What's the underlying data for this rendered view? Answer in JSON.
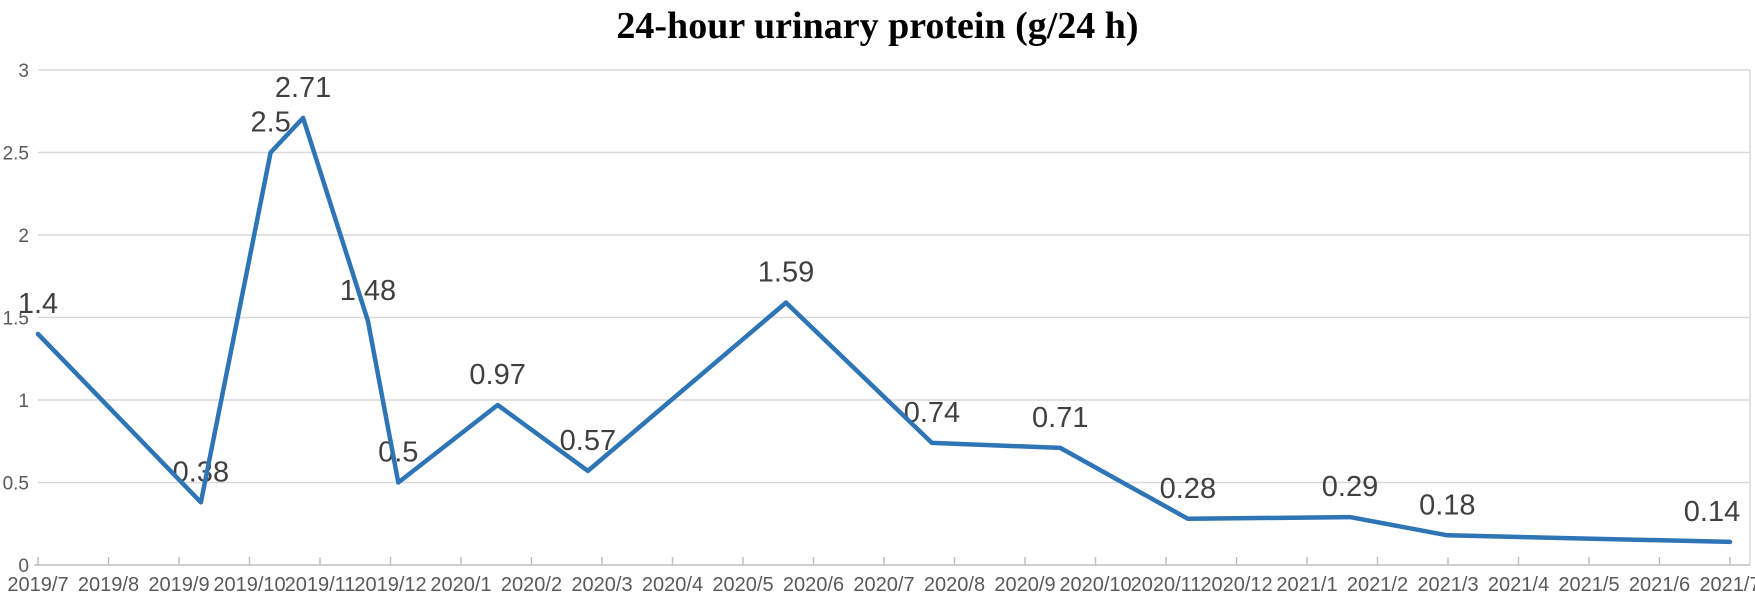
{
  "chart_data": {
    "type": "line",
    "title": "24-hour urinary protein (g/24 h)",
    "xlabel": "",
    "ylabel": "",
    "ylim": [
      0,
      3
    ],
    "ytick_step": 0.5,
    "ytick_labels": [
      "0",
      "0.5",
      "1",
      "1.5",
      "2",
      "2.5",
      "3"
    ],
    "grid": true,
    "legend_position": "none",
    "categories": [
      "2019/7",
      "2019/8",
      "2019/9",
      "2019/10",
      "2019/11",
      "2019/12",
      "2020/1",
      "2020/2",
      "2020/3",
      "2020/4",
      "2020/5",
      "2020/6",
      "2020/7",
      "2020/8",
      "2020/9",
      "2020/10",
      "2020/11",
      "2020/12",
      "2021/1",
      "2021/2",
      "2021/3",
      "2021/4",
      "2021/5",
      "2021/6",
      "2021/7"
    ],
    "series": [
      {
        "name": "24-hour urinary protein",
        "points": [
          {
            "x_month_index": 0.0,
            "value": 1.4,
            "label": "1.4"
          },
          {
            "x_month_index": 2.31,
            "value": 0.38,
            "label": "0.38"
          },
          {
            "x_month_index": 3.3,
            "value": 2.5,
            "label": "2.5"
          },
          {
            "x_month_index": 3.76,
            "value": 2.71,
            "label": "2.71"
          },
          {
            "x_month_index": 4.68,
            "value": 1.48,
            "label": "1.48"
          },
          {
            "x_month_index": 5.11,
            "value": 0.5,
            "label": "0.5"
          },
          {
            "x_month_index": 6.52,
            "value": 0.97,
            "label": "0.97"
          },
          {
            "x_month_index": 7.8,
            "value": 0.57,
            "label": "0.57"
          },
          {
            "x_month_index": 10.61,
            "value": 1.59,
            "label": "1.59"
          },
          {
            "x_month_index": 12.68,
            "value": 0.74,
            "label": "0.74"
          },
          {
            "x_month_index": 14.5,
            "value": 0.71,
            "label": "0.71"
          },
          {
            "x_month_index": 16.31,
            "value": 0.28,
            "label": "0.28"
          },
          {
            "x_month_index": 18.61,
            "value": 0.29,
            "label": "0.29"
          },
          {
            "x_month_index": 19.99,
            "value": 0.18,
            "label": "0.18"
          },
          {
            "x_month_index": 24.0,
            "value": 0.14,
            "label": "0.14"
          }
        ]
      }
    ],
    "colors": {
      "line": "#2E75B6",
      "gridline": "#D9D9D9",
      "axis_line": "#C0C0C0",
      "plot_border": "#D9D9D9",
      "axis_text": "#595959",
      "data_label": "#404040",
      "title_text": "#000000",
      "background": "#FFFFFF"
    }
  }
}
